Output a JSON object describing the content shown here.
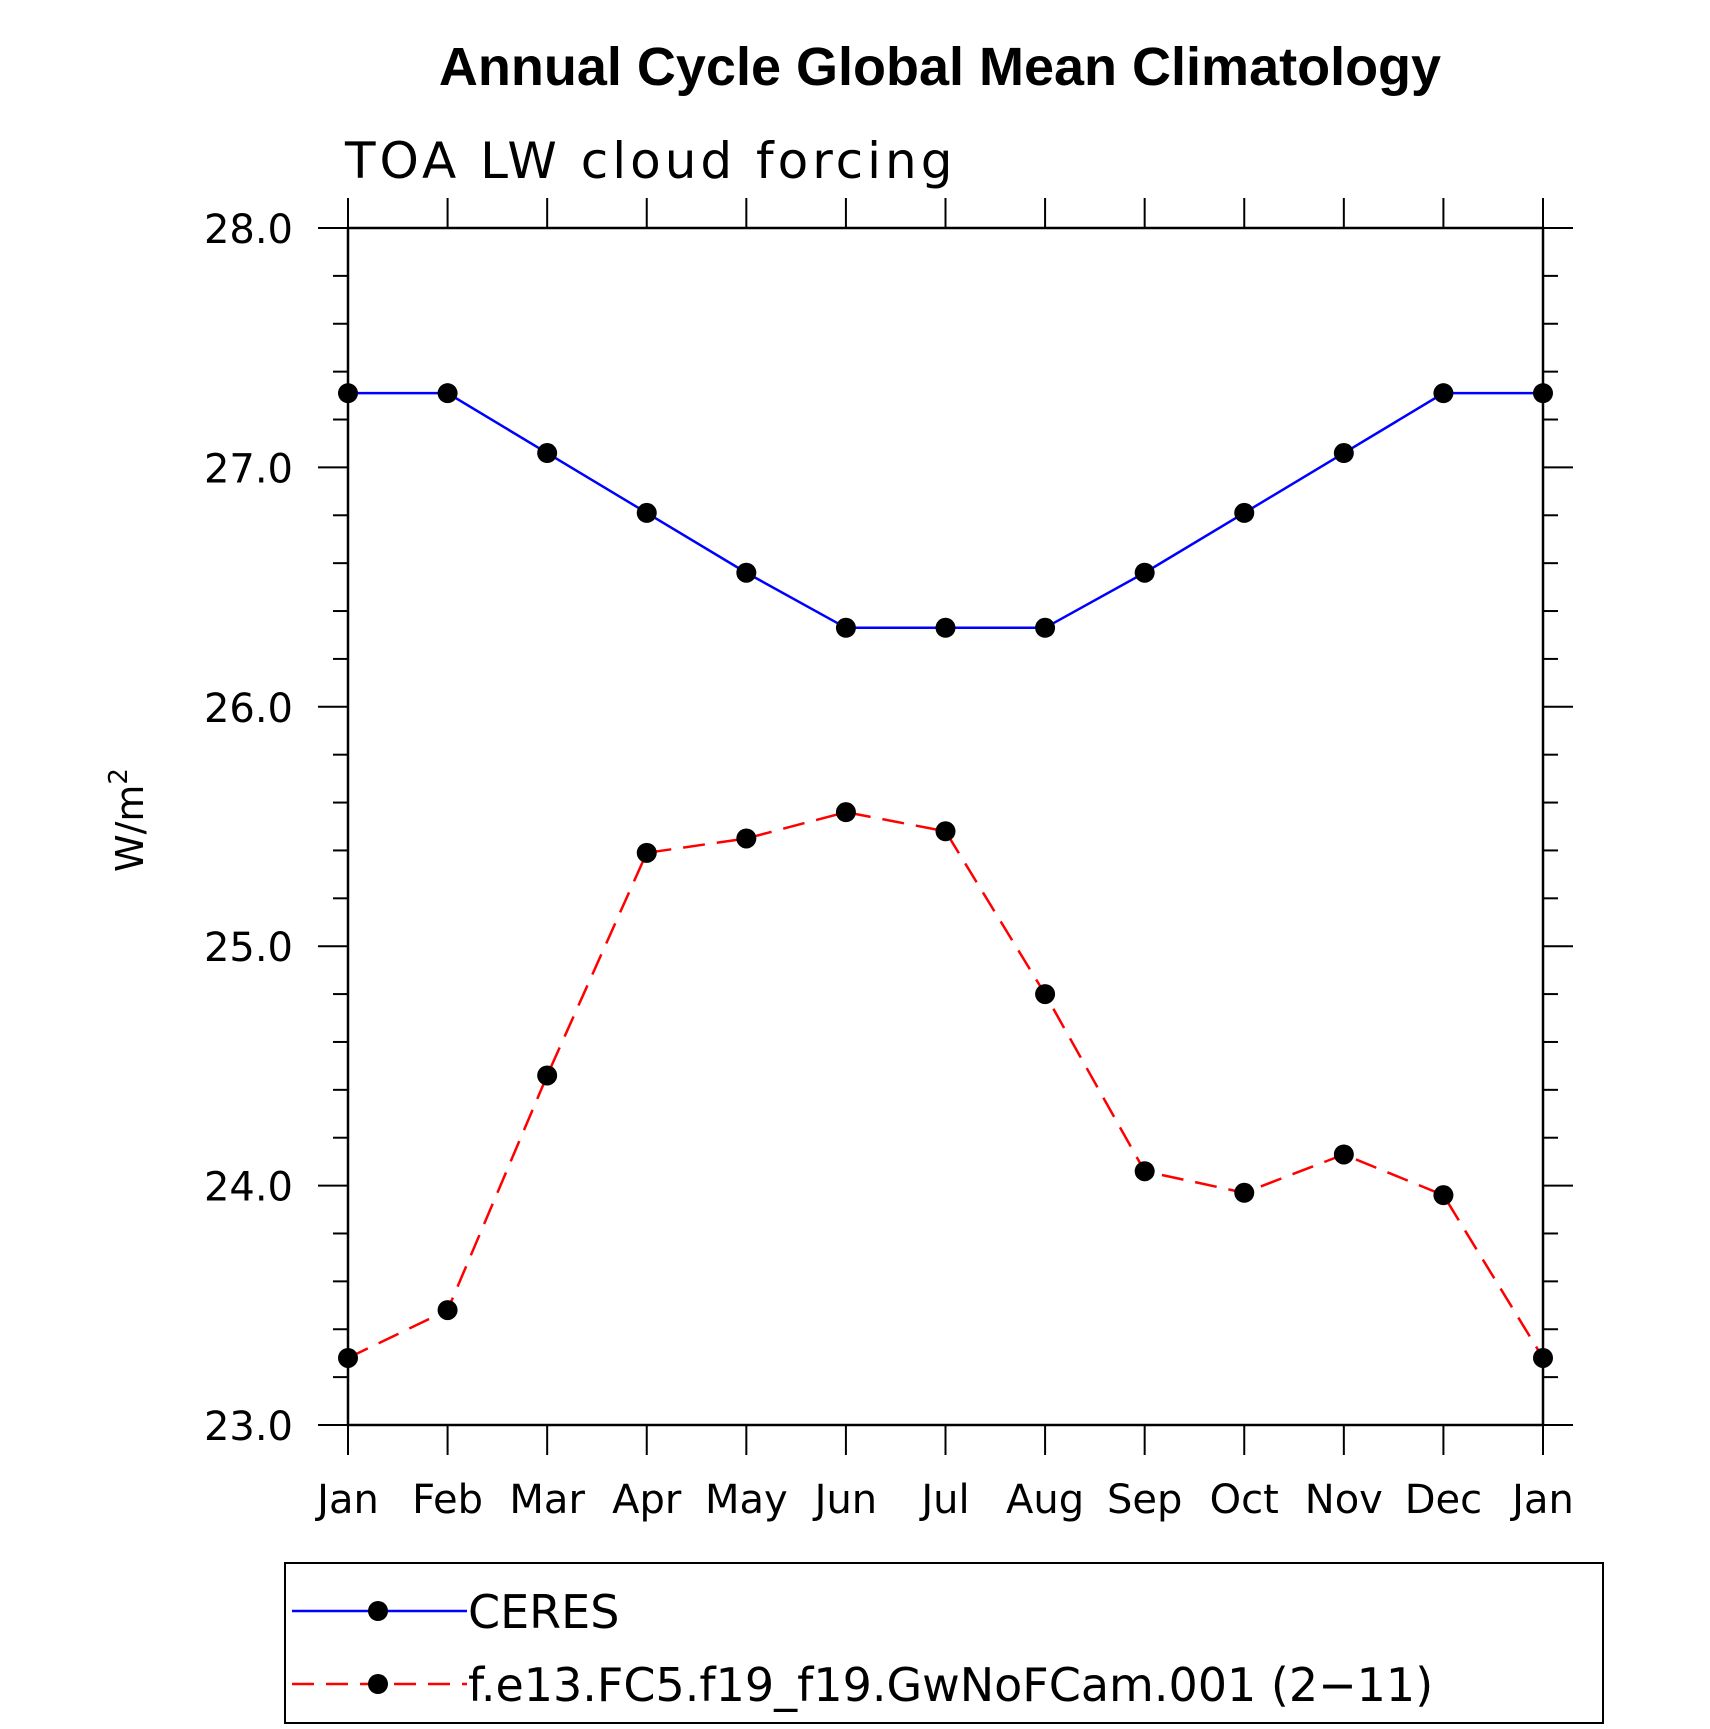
{
  "chart_data": {
    "type": "line",
    "title": "Annual Cycle Global Mean Climatology",
    "subtitle": "TOA LW cloud forcing",
    "ylabel": "W/m",
    "ylabel_sup": "2",
    "xlabel": "",
    "categories": [
      "Jan",
      "Feb",
      "Mar",
      "Apr",
      "May",
      "Jun",
      "Jul",
      "Aug",
      "Sep",
      "Oct",
      "Nov",
      "Dec",
      "Jan"
    ],
    "ylim": [
      23.0,
      28.0
    ],
    "yticks": [
      "23.0",
      "24.0",
      "25.0",
      "26.0",
      "27.0",
      "28.0"
    ],
    "grid": false,
    "legend_position": "bottom",
    "series": [
      {
        "name": "CERES",
        "color": "#0000ff",
        "style": "solid",
        "marker": "filled-circle",
        "values": [
          27.31,
          27.31,
          27.06,
          26.81,
          26.56,
          26.33,
          26.33,
          26.33,
          26.56,
          26.81,
          27.06,
          27.31,
          27.31
        ]
      },
      {
        "name": "f.e13.FC5.f19_f19.GwNoFCam.001 (2−11)",
        "color": "#ff0000",
        "style": "dashed",
        "marker": "filled-circle",
        "values": [
          23.28,
          23.48,
          24.46,
          25.39,
          25.45,
          25.56,
          25.48,
          24.8,
          24.06,
          23.97,
          24.13,
          23.96,
          23.28
        ]
      }
    ]
  }
}
